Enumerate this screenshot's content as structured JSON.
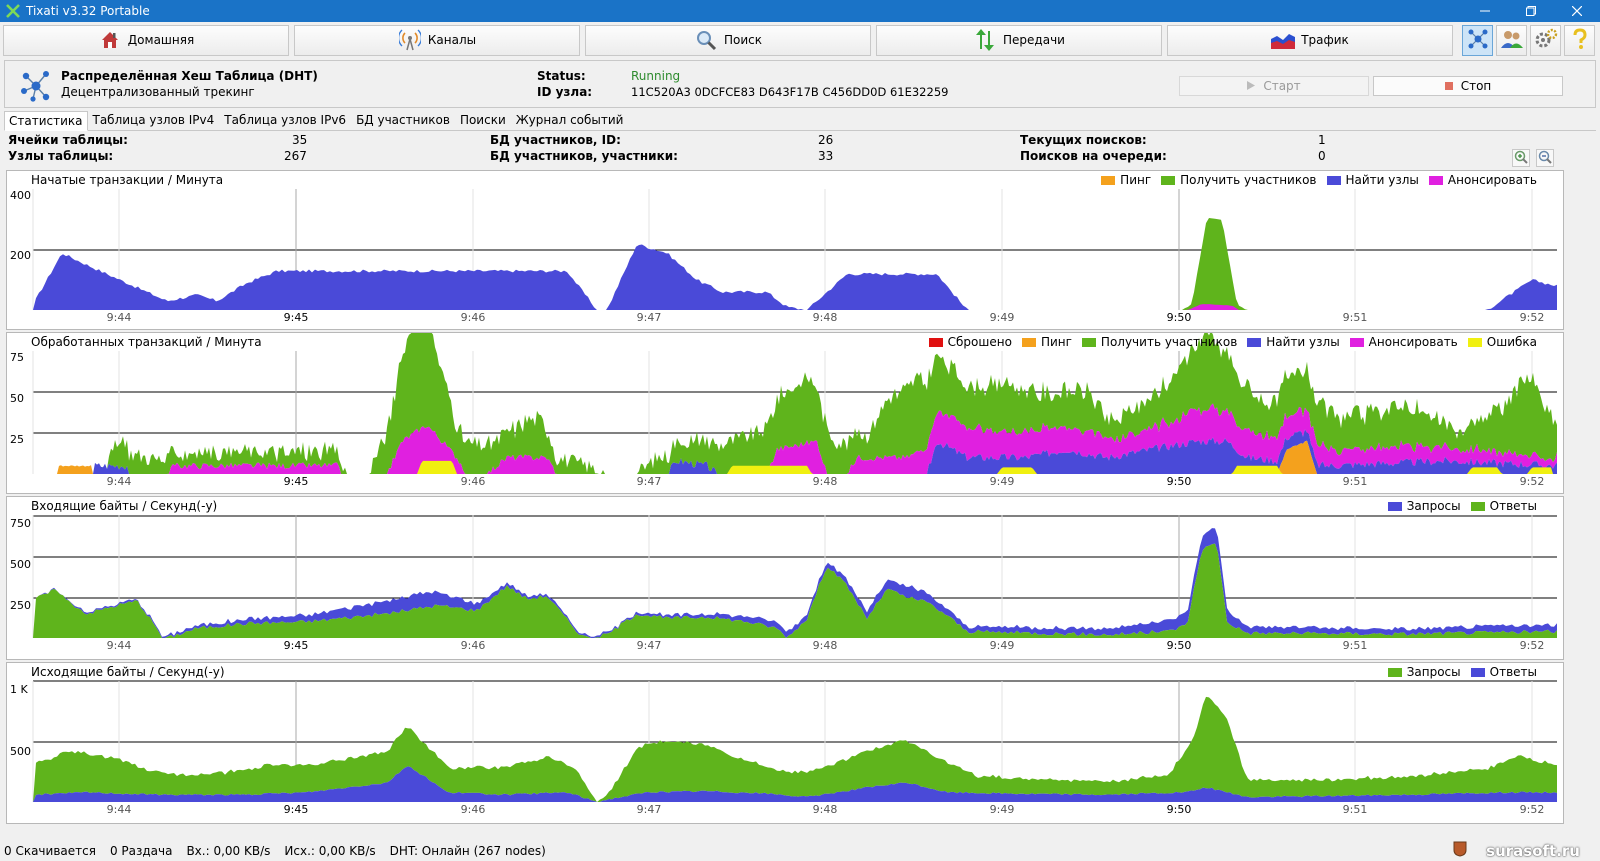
{
  "window": {
    "title": "Tixati v3.32 Portable"
  },
  "toolbar": {
    "buttons": [
      {
        "label": "Домашняя",
        "icon": "home-icon"
      },
      {
        "label": "Каналы",
        "icon": "antenna-icon"
      },
      {
        "label": "Поиск",
        "icon": "magnifier-icon"
      },
      {
        "label": "Передачи",
        "icon": "transfers-arrows-icon"
      },
      {
        "label": "Трафик",
        "icon": "traffic-graph-icon"
      }
    ],
    "tools": [
      {
        "icon": "dht-network-icon",
        "active": true
      },
      {
        "icon": "peers-users-icon",
        "active": false
      },
      {
        "icon": "settings-gears-icon",
        "active": false
      },
      {
        "icon": "help-question-icon",
        "active": false
      }
    ]
  },
  "dht": {
    "title": "Распределённая Хеш Таблица (DHT)",
    "subtitle": "Децентрализованный трекинг",
    "status_label": "Status:",
    "status_value": "Running",
    "status_color": "#2e8b2e",
    "id_label": "ID узла:",
    "id_value": "11C520A3 0DCFCE83 D643F17B C456DD0D 61E32259",
    "start_label": "Старт",
    "stop_label": "Стоп"
  },
  "tabs": [
    "Статистика",
    "Таблица узлов IPv4",
    "Таблица узлов IPv6",
    "БД участников",
    "Поиски",
    "Журнал событий"
  ],
  "stats": {
    "table_cells_label": "Ячейки таблицы:",
    "table_cells": "35",
    "table_nodes_label": "Узлы таблицы:",
    "table_nodes": "267",
    "peer_db_ids_label": "БД участников, ID:",
    "peer_db_ids": "26",
    "peer_db_peers_label": "БД участников, участники:",
    "peer_db_peers": "33",
    "current_searches_label": "Текущих поисков:",
    "current_searches": "1",
    "queued_searches_label": "Поисков на очереди:",
    "queued_searches": "0"
  },
  "time_ticks": [
    "9:44",
    "9:45",
    "9:46",
    "9:47",
    "9:48",
    "9:49",
    "9:50",
    "9:51",
    "9:52"
  ],
  "colors": {
    "ping": "#f4a11d",
    "get_peers": "#5fb41c",
    "find_nodes": "#4a4ad8",
    "announce": "#e020e0",
    "dropped": "#e01010",
    "error": "#f0f010",
    "requests_in": "#4a4ad8",
    "replies_in": "#5fb41c"
  },
  "graphs": {
    "initiated": {
      "title": "Начатые транзакции / Минута",
      "y_ticks": [
        "400",
        "200"
      ],
      "legend": [
        "Пинг",
        "Получить участников",
        "Найти узлы",
        "Анонсировать"
      ]
    },
    "processed": {
      "title": "Обработанных транзакций / Минута",
      "y_ticks": [
        "75",
        "50",
        "25"
      ],
      "legend": [
        "Сброшено",
        "Пинг",
        "Получить участников",
        "Найти узлы",
        "Анонсировать",
        "Ошибка"
      ]
    },
    "incoming": {
      "title": "Входящие байты / Секунд(-у)",
      "y_ticks": [
        "750",
        "500",
        "250"
      ],
      "legend": [
        "Запросы",
        "Ответы"
      ]
    },
    "outgoing": {
      "title": "Исходящие байты / Секунд(-у)",
      "y_ticks": [
        "1 K",
        "500"
      ],
      "legend": [
        "Запросы",
        "Ответы"
      ]
    }
  },
  "statusbar": {
    "downloading": "0 Скачивается",
    "seeding": "0 Раздача",
    "in_rate": "Вх.: 0,00 KB/s",
    "out_rate": "Исх.: 0,00 KB/s",
    "dht": "DHT: Онлайн (267 nodes)"
  },
  "watermark": "surasoft.ru"
}
